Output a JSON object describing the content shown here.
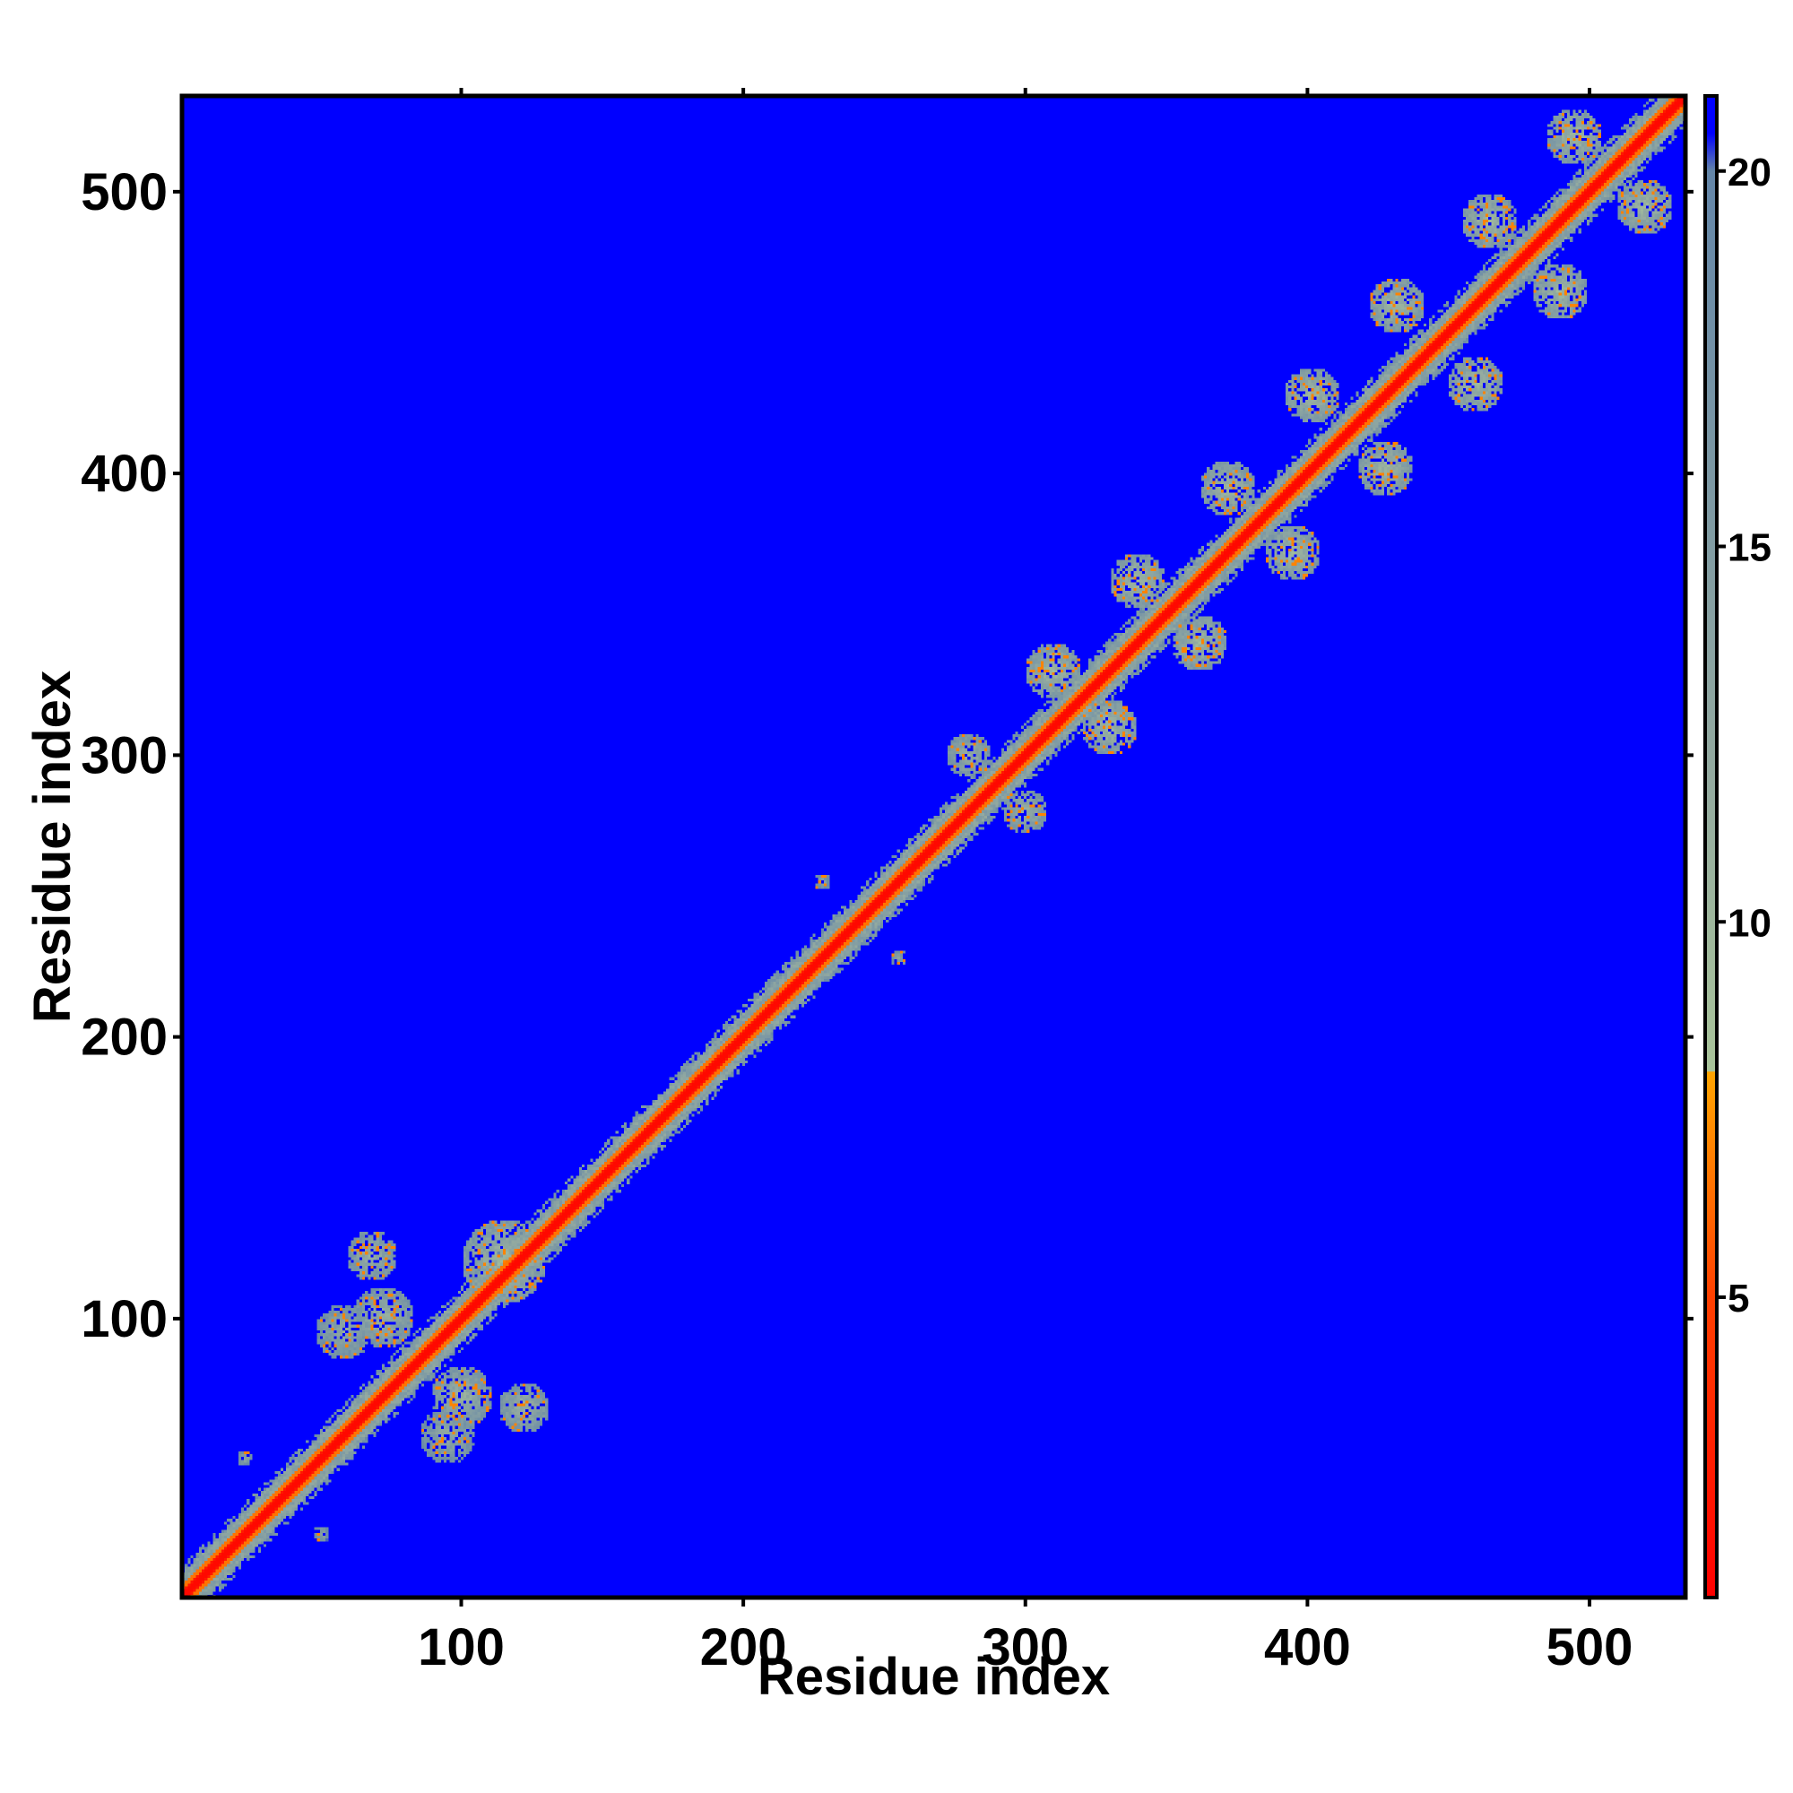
{
  "chart_data": {
    "type": "heatmap",
    "title": "",
    "xlabel": "Residue index",
    "ylabel": "Residue index",
    "xlim": [
      1,
      534
    ],
    "ylim": [
      1,
      534
    ],
    "n_residues": 534,
    "x_ticks": [
      100,
      200,
      300,
      400,
      500
    ],
    "y_ticks": [
      100,
      200,
      300,
      400,
      500
    ],
    "colorbar": {
      "range": [
        1,
        21
      ],
      "ticks": [
        5,
        10,
        15,
        20
      ],
      "stops": [
        {
          "value": 1,
          "color": "#ff0000"
        },
        {
          "value": 5,
          "color": "#ff4000"
        },
        {
          "value": 8,
          "color": "#ffa500"
        },
        {
          "value": 8.01,
          "color": "#a9c49a"
        },
        {
          "value": 12,
          "color": "#93aaa0"
        },
        {
          "value": 20,
          "color": "#6486a8"
        },
        {
          "value": 20.5,
          "color": "#0000ff"
        }
      ]
    },
    "colors": {
      "background": "#0000ff",
      "diagonal": "#ff0000",
      "near_contact": "#ffa500",
      "mid_distance": "#9fb8a0"
    },
    "diagonal_band": {
      "from": 1,
      "to": 534,
      "core_value": 2.5,
      "halo_value": 6.5,
      "shell_value": 12
    },
    "contact_domains": [
      {
        "center": [
          68,
          122
        ],
        "radius": 9,
        "value": 11
      },
      {
        "center": [
          122,
          68
        ],
        "radius": 9,
        "value": 11
      },
      {
        "center": [
          58,
          95
        ],
        "radius": 10,
        "value": 12
      },
      {
        "center": [
          95,
          58
        ],
        "radius": 10,
        "value": 12
      },
      {
        "center": [
          115,
          120
        ],
        "radius": 15,
        "value": 10
      },
      {
        "center": [
          100,
          72
        ],
        "radius": 11,
        "value": 11
      },
      {
        "center": [
          72,
          100
        ],
        "radius": 11,
        "value": 11
      },
      {
        "center": [
          23,
          50
        ],
        "radius": 3,
        "value": 13
      },
      {
        "center": [
          50,
          23
        ],
        "radius": 3,
        "value": 13
      },
      {
        "center": [
          228,
          255
        ],
        "radius": 3,
        "value": 13
      },
      {
        "center": [
          255,
          228
        ],
        "radius": 3,
        "value": 13
      },
      {
        "center": [
          280,
          300
        ],
        "radius": 8,
        "value": 11
      },
      {
        "center": [
          300,
          280
        ],
        "radius": 8,
        "value": 11
      },
      {
        "center": [
          310,
          330
        ],
        "radius": 10,
        "value": 10
      },
      {
        "center": [
          330,
          310
        ],
        "radius": 10,
        "value": 10
      },
      {
        "center": [
          340,
          362
        ],
        "radius": 10,
        "value": 10
      },
      {
        "center": [
          362,
          340
        ],
        "radius": 10,
        "value": 10
      },
      {
        "center": [
          372,
          395
        ],
        "radius": 10,
        "value": 10
      },
      {
        "center": [
          395,
          372
        ],
        "radius": 10,
        "value": 10
      },
      {
        "center": [
          402,
          428
        ],
        "radius": 10,
        "value": 10
      },
      {
        "center": [
          428,
          402
        ],
        "radius": 10,
        "value": 10
      },
      {
        "center": [
          432,
          460
        ],
        "radius": 10,
        "value": 10
      },
      {
        "center": [
          460,
          432
        ],
        "radius": 10,
        "value": 10
      },
      {
        "center": [
          465,
          490
        ],
        "radius": 10,
        "value": 10
      },
      {
        "center": [
          490,
          465
        ],
        "radius": 10,
        "value": 10
      },
      {
        "center": [
          495,
          520
        ],
        "radius": 10,
        "value": 10
      },
      {
        "center": [
          520,
          495
        ],
        "radius": 10,
        "value": 10
      }
    ]
  }
}
